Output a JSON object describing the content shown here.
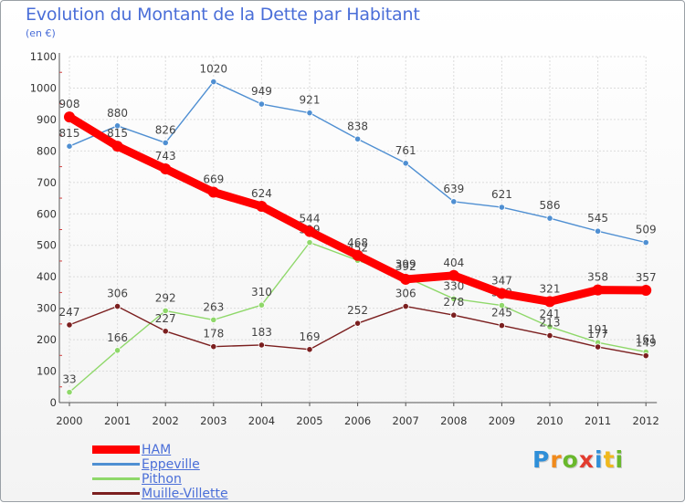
{
  "chart_data": {
    "type": "line",
    "title": "Evolution du Montant de la Dette par Habitant",
    "subtitle": "(en €)",
    "xlabel": "",
    "ylabel": "",
    "categories": [
      "2000",
      "2001",
      "2002",
      "2003",
      "2004",
      "2005",
      "2006",
      "2007",
      "2008",
      "2009",
      "2010",
      "2011",
      "2012"
    ],
    "ylim": [
      0,
      1100
    ],
    "yticks": [
      "0",
      "100",
      "200",
      "300",
      "400",
      "500",
      "600",
      "700",
      "800",
      "900",
      "1000",
      "1100"
    ],
    "grid": true,
    "legend_position": "bottom-left",
    "series": [
      {
        "name": "HAM",
        "color": "#ff0000",
        "emphasis": true,
        "values": [
          908,
          815,
          743,
          669,
          624,
          544,
          468,
          392,
          404,
          347,
          321,
          358,
          357
        ]
      },
      {
        "name": "Eppeville",
        "color": "#4f8fd2",
        "emphasis": false,
        "values": [
          815,
          880,
          826,
          1020,
          949,
          921,
          838,
          761,
          639,
          621,
          586,
          545,
          509
        ]
      },
      {
        "name": "Pithon",
        "color": "#8fd86a",
        "emphasis": false,
        "values": [
          33,
          166,
          292,
          263,
          310,
          509,
          452,
          399,
          330,
          309,
          241,
          191,
          161
        ]
      },
      {
        "name": "Muille-Villette",
        "color": "#7b1f1f",
        "emphasis": false,
        "values": [
          247,
          306,
          227,
          178,
          183,
          169,
          252,
          306,
          278,
          245,
          213,
          177,
          149
        ]
      }
    ]
  },
  "logo": {
    "letters": [
      "P",
      "r",
      "o",
      "x",
      "i",
      "t",
      "i"
    ],
    "colors": [
      "#2f8fd8",
      "#f08a1c",
      "#69b82c",
      "#e23b2e",
      "#2f8fd8",
      "#f0b81c",
      "#69b82c"
    ]
  }
}
